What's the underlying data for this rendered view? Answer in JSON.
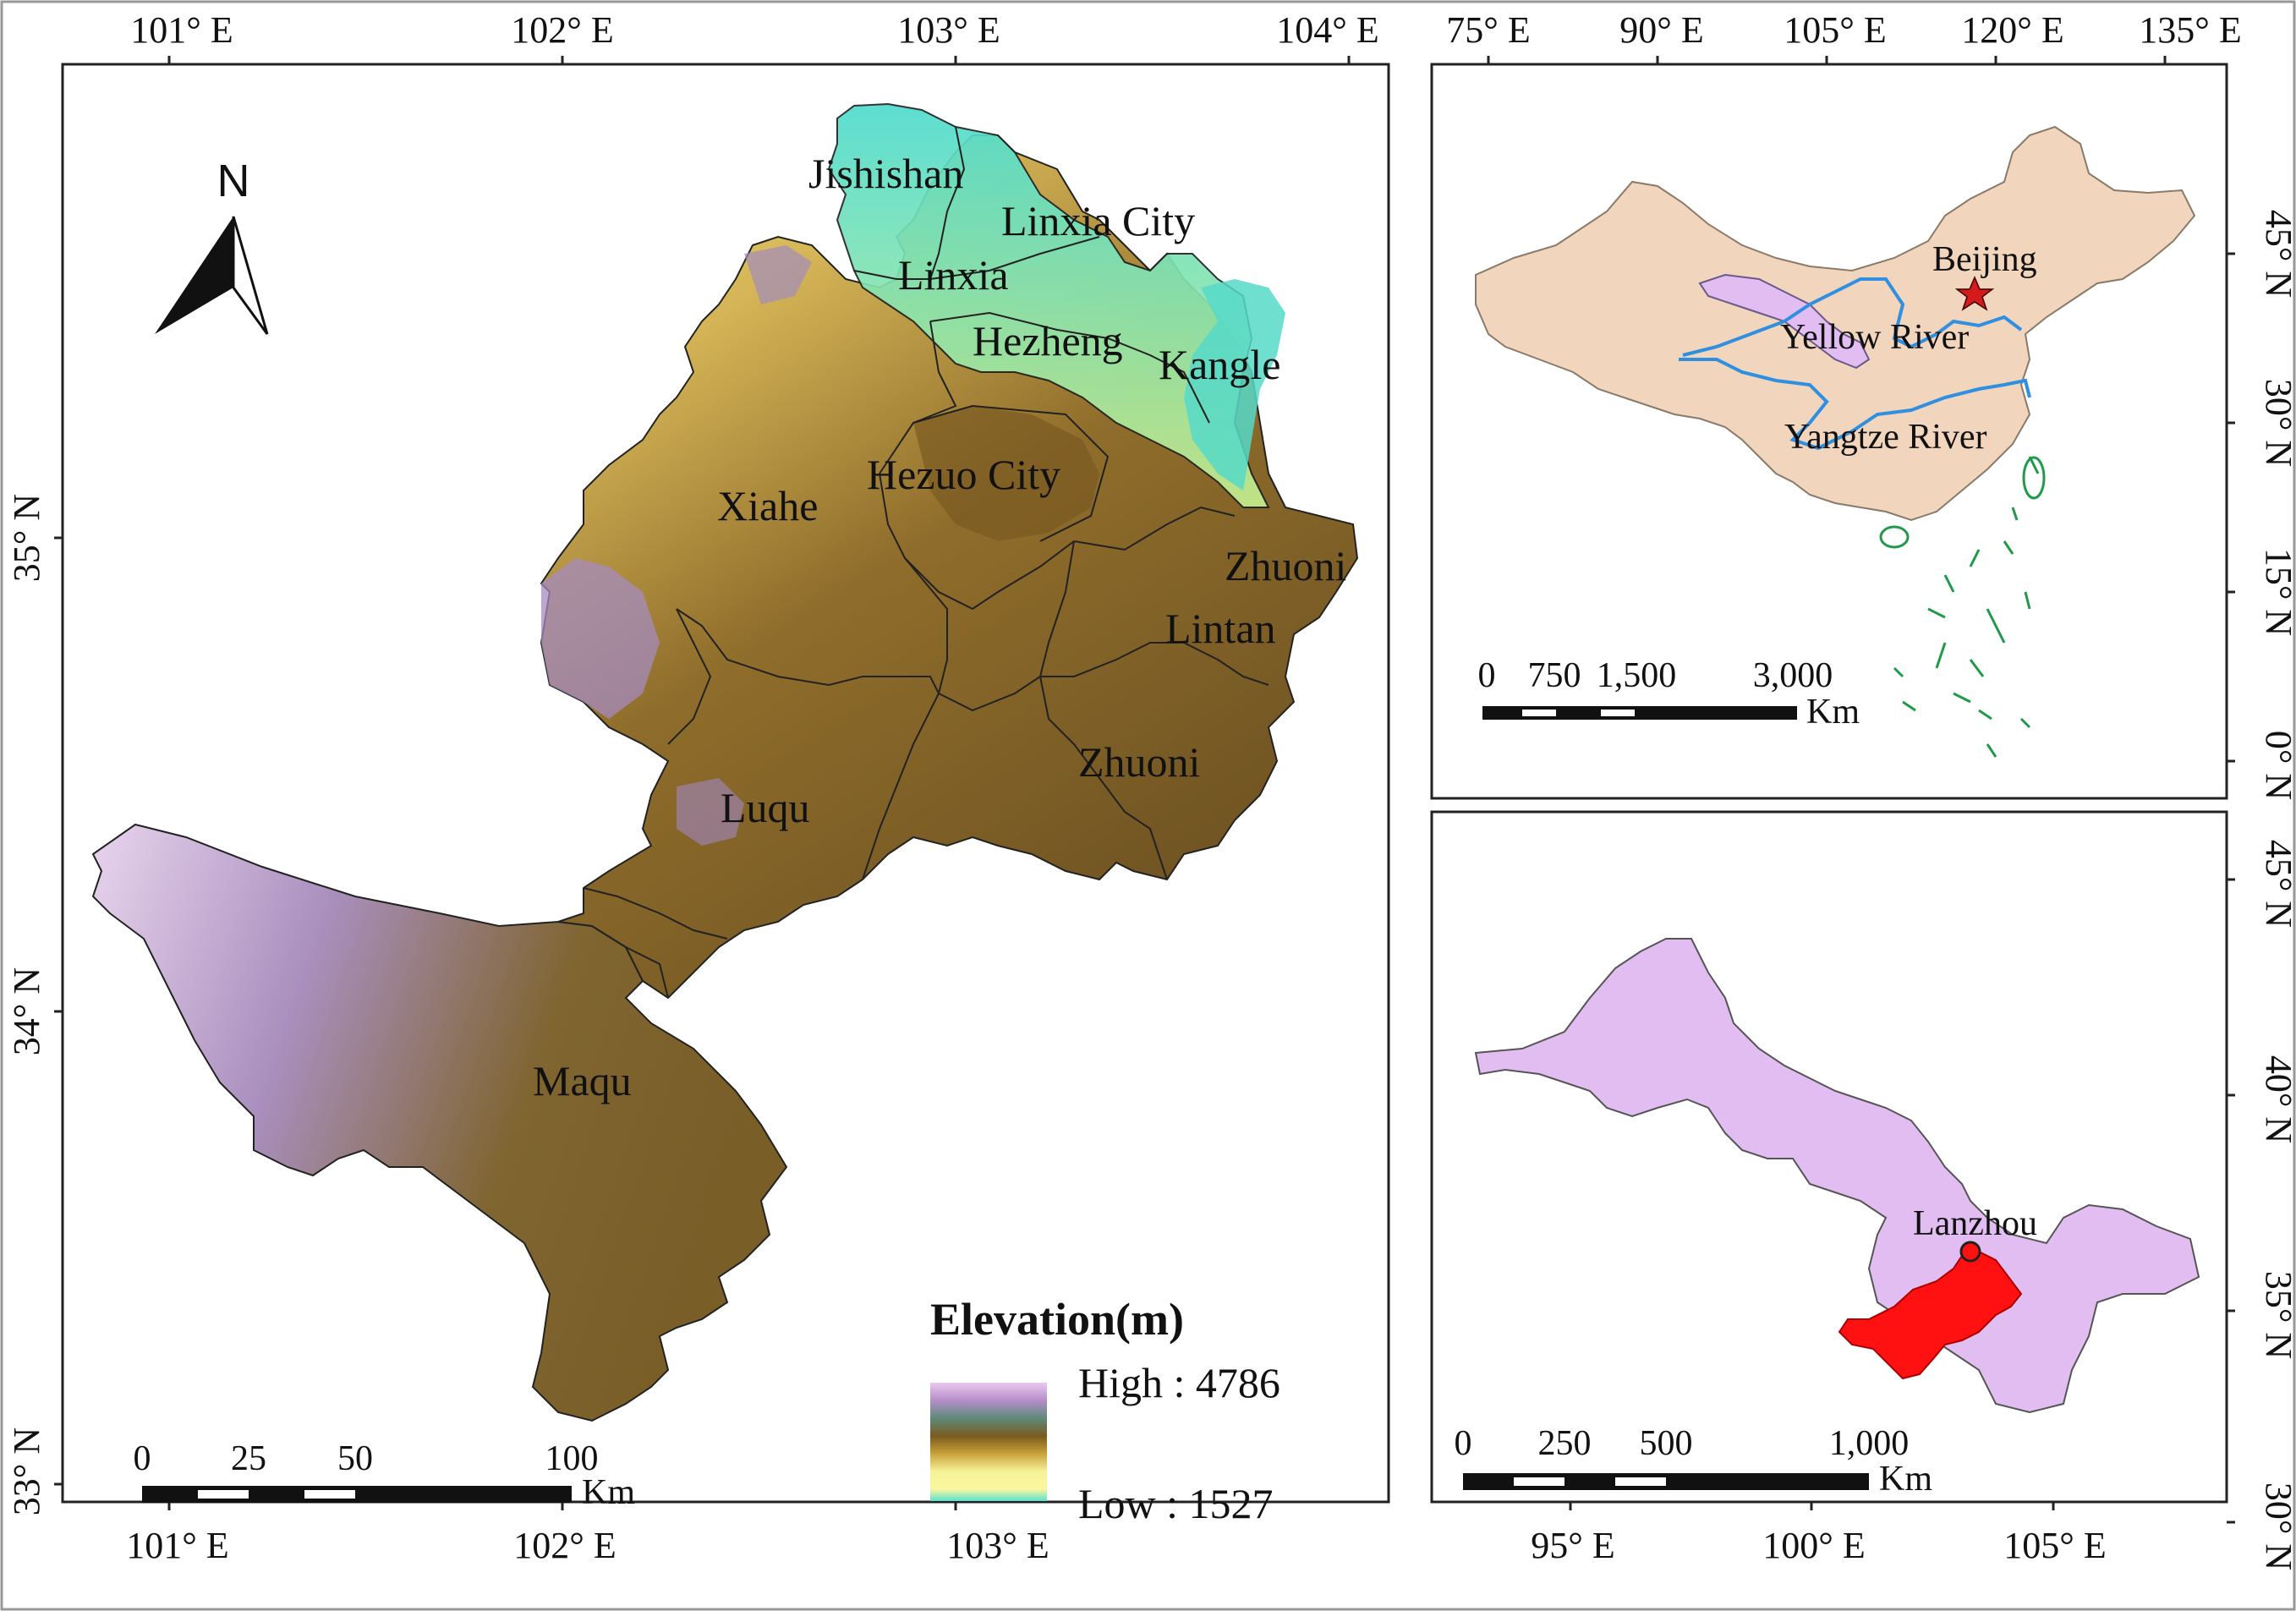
{
  "colors": {
    "elevation_high": "#c79bd8",
    "elevation_mid": "#8a6a2a",
    "elevation_low_yellow": "#f4ef8a",
    "elevation_low_cyan": "#6fe3c8",
    "china_fill": "#f2d5bd",
    "province_fill": "#e2bdf2",
    "study_area_fill": "#ff1111",
    "river": "#2f8fe0",
    "islands": "#1f9a4a"
  },
  "main_map": {
    "top_ticks": [
      "101° E",
      "102° E",
      "103° E",
      "104° E"
    ],
    "bottom_ticks": [
      "101° E",
      "102° E",
      "103° E"
    ],
    "left_ticks": [
      "35° N",
      "34° N",
      "33° N"
    ],
    "north_arrow_label": "N",
    "counties": [
      {
        "name": "Jishishan"
      },
      {
        "name": "Linxia City"
      },
      {
        "name": "Linxia"
      },
      {
        "name": "Hezheng"
      },
      {
        "name": "Kangle"
      },
      {
        "name": "Hezuo City"
      },
      {
        "name": "Xiahe"
      },
      {
        "name": "Zhuoni"
      },
      {
        "name": "Lintan"
      },
      {
        "name": "Zhuoni"
      },
      {
        "name": "Luqu"
      },
      {
        "name": "Maqu"
      }
    ],
    "legend": {
      "title": "Elevation(m)",
      "high_label": "High : 4786",
      "low_label": "Low : 1527"
    },
    "scale": {
      "ticks": [
        "0",
        "25",
        "50",
        "100"
      ],
      "unit": "Km"
    }
  },
  "china_map": {
    "top_ticks": [
      "75° E",
      "90° E",
      "105° E",
      "120° E",
      "135° E"
    ],
    "right_ticks": [
      "45° N",
      "30° N",
      "15° N",
      "0° N"
    ],
    "labels": {
      "capital": "Beijing",
      "river1": "Yellow River",
      "river2": "Yangtze River"
    },
    "scale": {
      "ticks": [
        "0",
        "750",
        "1,500",
        "3,000"
      ],
      "unit": "Km"
    }
  },
  "gansu_map": {
    "bottom_ticks": [
      "95° E",
      "100° E",
      "105° E"
    ],
    "right_ticks": [
      "45° N",
      "40° N",
      "35° N",
      "30° N"
    ],
    "labels": {
      "city": "Lanzhou"
    },
    "scale": {
      "ticks": [
        "0",
        "250",
        "500",
        "1,000"
      ],
      "unit": "Km"
    }
  }
}
